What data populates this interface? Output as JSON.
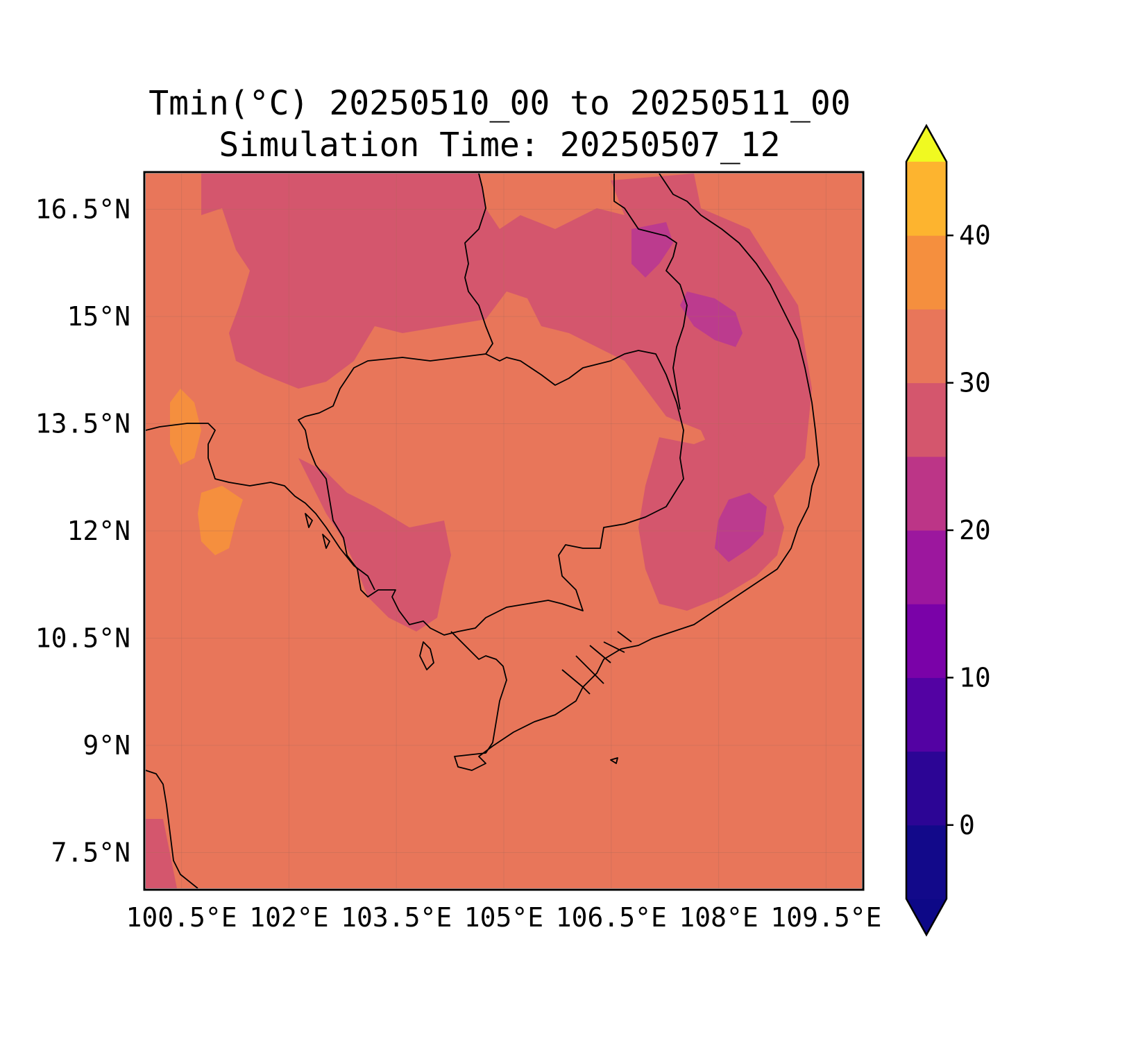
{
  "title": {
    "line1": "Tmin(°C) 20250510_00 to 20250511_00",
    "line2": "Simulation Time: 20250507_12"
  },
  "map": {
    "lon_range": [
      100.0,
      110.0
    ],
    "lat_range": [
      7.0,
      17.0
    ],
    "gridlines": true,
    "xticks": [
      100.5,
      102,
      103.5,
      105,
      106.5,
      108,
      109.5
    ],
    "yticks": [
      16.5,
      15,
      13.5,
      12,
      10.5,
      9,
      7.5
    ],
    "xtick_labels": [
      "100.5°E",
      "102°E",
      "103.5°E",
      "105°E",
      "106.5°E",
      "108°E",
      "109.5°E"
    ],
    "ytick_labels": [
      "16.5°N",
      "15°N",
      "13.5°N",
      "12°N",
      "10.5°N",
      "9°N",
      "7.5°N"
    ],
    "dominant_level_color": "#e8765a",
    "region_colors": {
      "warm_25_30": "#e8765a",
      "cool_20_25": "#d4566d",
      "cooler_15_20": "#bc3b8e",
      "hot_30_35": "#f58f3e"
    }
  },
  "colorbar": {
    "levels": [
      -5,
      0,
      5,
      10,
      15,
      20,
      25,
      30,
      35,
      40,
      45
    ],
    "colors": [
      "#12098a",
      "#2c0595",
      "#5302a3",
      "#7a02a8",
      "#9c179e",
      "#bc3587",
      "#d4566d",
      "#e8765a",
      "#f58f3e",
      "#fdb42f",
      "#f3e526"
    ],
    "under_color": "#0d0887",
    "over_color": "#f0f921",
    "tick_values": [
      0,
      10,
      20,
      30,
      40
    ],
    "tick_labels": [
      "0",
      "10",
      "20",
      "30",
      "40"
    ],
    "extend": "both"
  }
}
